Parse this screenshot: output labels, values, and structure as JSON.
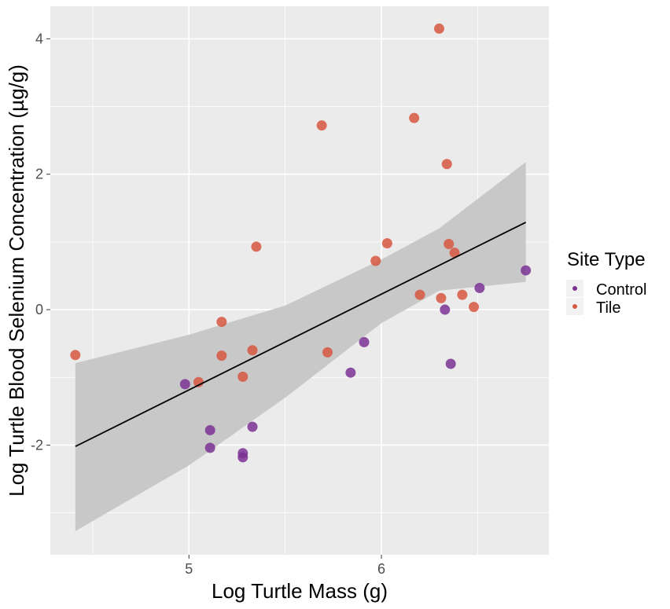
{
  "chart_data": {
    "type": "scatter",
    "xlabel": "Log Turtle Mass (g)",
    "ylabel": "Log Turtle Blood Selenium Concentration (µg/g)",
    "xlim": [
      4.28,
      6.87
    ],
    "ylim": [
      -3.62,
      4.48
    ],
    "x_ticks": [
      5,
      6
    ],
    "x_tick_labels": [
      "5",
      "6"
    ],
    "x_minor_gridlines": [
      4.5,
      5.5,
      6.5
    ],
    "y_ticks": [
      -2,
      0,
      2,
      4
    ],
    "y_tick_labels": [
      "-2",
      "0",
      "2",
      "4"
    ],
    "y_minor_gridlines": [
      -3,
      -1,
      1,
      3
    ],
    "grid": true,
    "legend": {
      "title": "Site Type",
      "position": "right",
      "entries": [
        {
          "label": "Control",
          "color": "#7b3294"
        },
        {
          "label": "Tile",
          "color": "#d6573f"
        }
      ]
    },
    "colors": {
      "panel": "#ebebeb",
      "grid": "#ffffff",
      "ribbon": "#c8c8c8",
      "fit_line": "#000000"
    },
    "series": [
      {
        "name": "Control",
        "color": "#7b3294",
        "points": [
          {
            "x": 4.98,
            "y": -1.1
          },
          {
            "x": 5.11,
            "y": -1.78
          },
          {
            "x": 5.11,
            "y": -2.04
          },
          {
            "x": 5.28,
            "y": -2.12
          },
          {
            "x": 5.28,
            "y": -2.18
          },
          {
            "x": 5.33,
            "y": -1.73
          },
          {
            "x": 5.84,
            "y": -0.93
          },
          {
            "x": 5.91,
            "y": -0.48
          },
          {
            "x": 6.33,
            "y": 0.0
          },
          {
            "x": 6.36,
            "y": -0.8
          },
          {
            "x": 6.51,
            "y": 0.32
          },
          {
            "x": 6.75,
            "y": 0.58
          }
        ]
      },
      {
        "name": "Tile",
        "color": "#d6573f",
        "points": [
          {
            "x": 4.41,
            "y": -0.67
          },
          {
            "x": 5.05,
            "y": -1.07
          },
          {
            "x": 5.17,
            "y": -0.18
          },
          {
            "x": 5.17,
            "y": -0.68
          },
          {
            "x": 5.28,
            "y": -0.99
          },
          {
            "x": 5.33,
            "y": -0.6
          },
          {
            "x": 5.35,
            "y": 0.93
          },
          {
            "x": 5.69,
            "y": 2.72
          },
          {
            "x": 5.72,
            "y": -0.63
          },
          {
            "x": 5.97,
            "y": 0.72
          },
          {
            "x": 6.03,
            "y": 0.98
          },
          {
            "x": 6.17,
            "y": 2.83
          },
          {
            "x": 6.2,
            "y": 0.22
          },
          {
            "x": 6.3,
            "y": 4.15
          },
          {
            "x": 6.31,
            "y": 0.17
          },
          {
            "x": 6.34,
            "y": 2.15
          },
          {
            "x": 6.35,
            "y": 0.97
          },
          {
            "x": 6.38,
            "y": 0.84
          },
          {
            "x": 6.42,
            "y": 0.22
          },
          {
            "x": 6.48,
            "y": 0.04
          }
        ]
      }
    ],
    "fit": {
      "x": [
        4.41,
        6.75
      ],
      "y": [
        -2.02,
        1.29
      ]
    },
    "ribbon": {
      "x": [
        4.41,
        5.0,
        5.5,
        6.0,
        6.3,
        6.75
      ],
      "upper": [
        -0.79,
        -0.37,
        0.06,
        0.74,
        1.2,
        2.18
      ],
      "lower": [
        -3.27,
        -2.3,
        -1.3,
        -0.2,
        0.28,
        0.41
      ]
    }
  }
}
